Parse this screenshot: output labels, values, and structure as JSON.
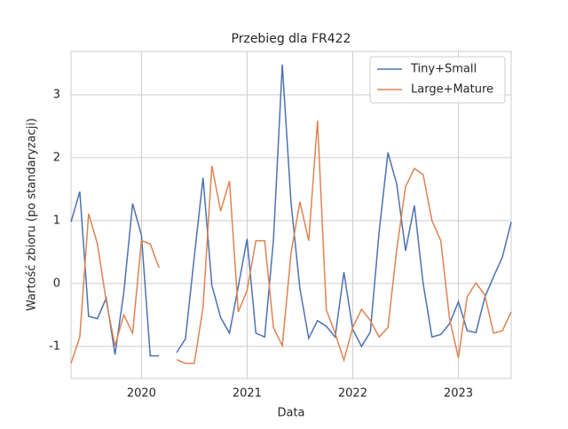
{
  "chart_data": {
    "type": "line",
    "title": "Przebieg dla FR422",
    "xlabel": "Data",
    "ylabel": "Wartość zbioru (po standaryzacji)",
    "x": [
      "2019-05",
      "2019-06",
      "2019-07",
      "2019-08",
      "2019-09",
      "2019-10",
      "2019-11",
      "2019-12",
      "2020-01",
      "2020-02",
      "2020-03",
      "2020-04",
      "2020-05",
      "2020-06",
      "2020-07",
      "2020-08",
      "2020-09",
      "2020-10",
      "2020-11",
      "2020-12",
      "2021-01",
      "2021-02",
      "2021-03",
      "2021-04",
      "2021-05",
      "2021-06",
      "2021-07",
      "2021-08",
      "2021-09",
      "2021-10",
      "2021-11",
      "2021-12",
      "2022-01",
      "2022-02",
      "2022-03",
      "2022-04",
      "2022-05",
      "2022-06",
      "2022-07",
      "2022-08",
      "2022-09",
      "2022-10",
      "2022-11",
      "2022-12",
      "2023-01",
      "2023-02",
      "2023-03",
      "2023-04",
      "2023-05",
      "2023-06",
      "2023-07"
    ],
    "series": [
      {
        "name": "Tiny+Small",
        "color": "#4c72b0",
        "values": [
          0.98,
          1.46,
          -0.52,
          -0.56,
          -0.23,
          -1.13,
          -0.14,
          1.27,
          0.77,
          -1.15,
          -1.15,
          null,
          -1.1,
          -0.88,
          0.42,
          1.68,
          -0.03,
          -0.54,
          -0.79,
          -0.05,
          0.71,
          -0.79,
          -0.85,
          0.7,
          3.48,
          1.27,
          -0.08,
          -0.87,
          -0.59,
          -0.68,
          -0.85,
          0.18,
          -0.73,
          -1.0,
          -0.77,
          0.82,
          2.08,
          1.58,
          0.52,
          1.24,
          0.0,
          -0.85,
          -0.81,
          -0.64,
          -0.29,
          -0.75,
          -0.78,
          -0.22,
          0.11,
          0.42,
          0.98
        ]
      },
      {
        "name": "Large+Mature",
        "color": "#dd8452",
        "values": [
          -1.27,
          -0.85,
          1.11,
          0.63,
          -0.28,
          -0.99,
          -0.5,
          -0.79,
          0.68,
          0.63,
          0.25,
          null,
          -1.21,
          -1.27,
          -1.27,
          -0.38,
          1.87,
          1.15,
          1.63,
          -0.45,
          -0.11,
          0.68,
          0.68,
          -0.7,
          -0.99,
          0.49,
          1.3,
          0.68,
          2.59,
          -0.42,
          -0.79,
          -1.22,
          -0.7,
          -0.41,
          -0.59,
          -0.85,
          -0.7,
          0.54,
          1.54,
          1.83,
          1.73,
          1.0,
          0.68,
          -0.56,
          -1.18,
          -0.21,
          0.01,
          -0.18,
          -0.79,
          -0.75,
          -0.45
        ]
      }
    ],
    "xlim": [
      "2019-05",
      "2023-07"
    ],
    "xticks": [
      {
        "value": "2020-01",
        "label": "2020"
      },
      {
        "value": "2021-01",
        "label": "2021"
      },
      {
        "value": "2022-01",
        "label": "2022"
      },
      {
        "value": "2023-01",
        "label": "2023"
      }
    ],
    "ylim": [
      -1.51,
      3.69
    ],
    "yticks": [
      -1,
      0,
      1,
      2,
      3
    ],
    "grid": true,
    "legend": "upper right"
  }
}
